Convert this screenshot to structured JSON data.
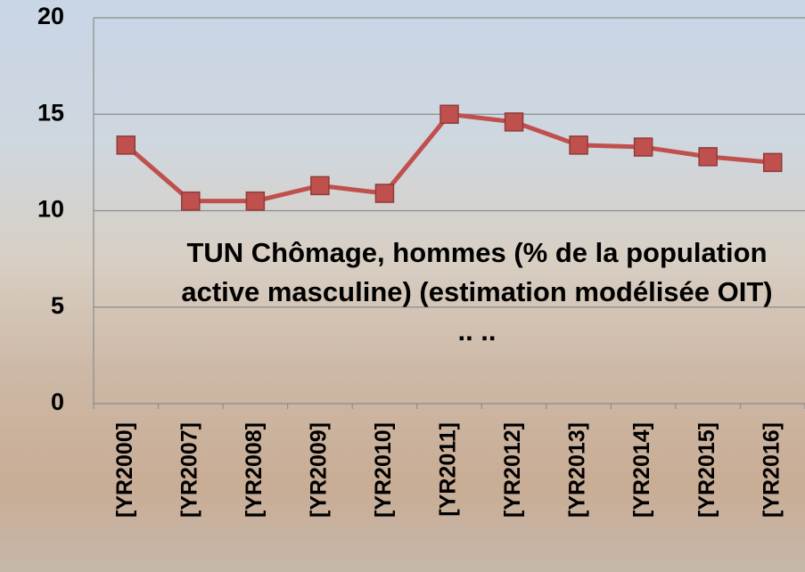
{
  "chart_data": {
    "type": "line",
    "title": "TUN Chômage, hommes (% de la population active masculine) (estimation modélisée OIT) .. ..",
    "categories": [
      "[YR2000]",
      "[YR2007]",
      "[YR2008]",
      "[YR2009]",
      "[YR2010]",
      "[YR2011]",
      "[YR2012]",
      "[YR2013]",
      "[YR2014]",
      "[YR2015]",
      "[YR2016]"
    ],
    "series": [
      {
        "color": "#c0504d",
        "values": [
          13.4,
          10.5,
          10.5,
          11.3,
          10.9,
          15.0,
          14.6,
          13.4,
          13.3,
          12.8,
          12.5
        ]
      }
    ],
    "ylim": [
      0,
      20
    ],
    "yticks": [
      0,
      5,
      10,
      15,
      20
    ],
    "grid": true
  }
}
